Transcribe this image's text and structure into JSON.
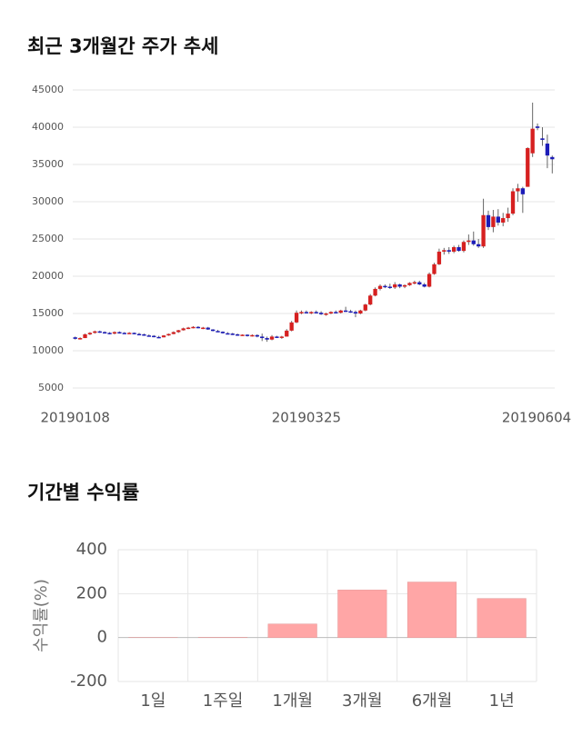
{
  "chart_data": [
    {
      "type": "candlestick",
      "title": "최근 3개월간 주가 추세",
      "up_color": "#d62020",
      "down_color": "#1c1cb8",
      "grid": true,
      "ylim": [
        5000,
        45000
      ],
      "yticks": [
        5000,
        10000,
        15000,
        20000,
        25000,
        30000,
        35000,
        40000,
        45000
      ],
      "categories": [
        "20190108",
        null,
        null,
        null,
        null,
        null,
        null,
        null,
        null,
        null,
        null,
        null,
        null,
        null,
        null,
        null,
        null,
        null,
        null,
        null,
        null,
        null,
        null,
        null,
        null,
        null,
        null,
        null,
        null,
        null,
        null,
        null,
        null,
        null,
        null,
        null,
        null,
        null,
        null,
        null,
        null,
        null,
        null,
        null,
        null,
        null,
        null,
        "20190325",
        null,
        null,
        null,
        null,
        null,
        null,
        null,
        null,
        null,
        null,
        null,
        null,
        null,
        null,
        null,
        null,
        null,
        null,
        null,
        null,
        null,
        null,
        null,
        null,
        null,
        null,
        null,
        null,
        null,
        null,
        null,
        null,
        null,
        null,
        null,
        null,
        null,
        null,
        null,
        null,
        null,
        null,
        null,
        null,
        null,
        null,
        null,
        null,
        null,
        "20190604"
      ],
      "values": [
        [
          11800,
          11900,
          11500,
          11600
        ],
        [
          11600,
          11800,
          11500,
          11700
        ],
        [
          11700,
          12300,
          11700,
          12200
        ],
        [
          12200,
          12500,
          12100,
          12400
        ],
        [
          12400,
          12700,
          12300,
          12600
        ],
        [
          12600,
          12700,
          12400,
          12500
        ],
        [
          12500,
          12600,
          12300,
          12400
        ],
        [
          12400,
          12500,
          12200,
          12300
        ],
        [
          12300,
          12600,
          12200,
          12500
        ],
        [
          12500,
          12600,
          12300,
          12400
        ],
        [
          12400,
          12500,
          12300,
          12350
        ],
        [
          12350,
          12500,
          12300,
          12400
        ],
        [
          12400,
          12450,
          12200,
          12250
        ],
        [
          12250,
          12400,
          12100,
          12200
        ],
        [
          12200,
          12300,
          12000,
          12050
        ],
        [
          12050,
          12200,
          11900,
          12000
        ],
        [
          12000,
          12100,
          11800,
          11850
        ],
        [
          11850,
          12000,
          11700,
          11800
        ],
        [
          11800,
          12100,
          11800,
          12050
        ],
        [
          12050,
          12300,
          12000,
          12250
        ],
        [
          12250,
          12600,
          12200,
          12500
        ],
        [
          12500,
          12800,
          12400,
          12750
        ],
        [
          12750,
          13100,
          12700,
          13000
        ],
        [
          13000,
          13200,
          12900,
          13100
        ],
        [
          13100,
          13300,
          13000,
          13200
        ],
        [
          13200,
          13300,
          13000,
          13050
        ],
        [
          13050,
          13200,
          12900,
          13100
        ],
        [
          13100,
          13200,
          12800,
          12850
        ],
        [
          12850,
          12900,
          12600,
          12650
        ],
        [
          12650,
          12800,
          12500,
          12550
        ],
        [
          12550,
          12600,
          12300,
          12350
        ],
        [
          12350,
          12500,
          12200,
          12300
        ],
        [
          12300,
          12400,
          12100,
          12200
        ],
        [
          12200,
          12300,
          12000,
          12100
        ],
        [
          12100,
          12200,
          12000,
          12150
        ],
        [
          12150,
          12200,
          11900,
          12000
        ],
        [
          12000,
          12200,
          11900,
          12100
        ],
        [
          12100,
          12200,
          11800,
          11900
        ],
        [
          11900,
          12300,
          11300,
          11700
        ],
        [
          11700,
          11900,
          11200,
          11500
        ],
        [
          11500,
          12100,
          11400,
          11900
        ],
        [
          11900,
          12000,
          11700,
          11800
        ],
        [
          11800,
          12000,
          11600,
          11900
        ],
        [
          11900,
          12900,
          11900,
          12700
        ],
        [
          12700,
          14000,
          12600,
          13800
        ],
        [
          13800,
          15400,
          13700,
          15100
        ],
        [
          15100,
          15400,
          14900,
          15200
        ],
        [
          15200,
          15400,
          15000,
          15100
        ],
        [
          15100,
          15300,
          14900,
          15200
        ],
        [
          15200,
          15400,
          15000,
          15100
        ],
        [
          15100,
          15300,
          14800,
          14900
        ],
        [
          14900,
          15100,
          14700,
          15000
        ],
        [
          15000,
          15300,
          14900,
          15200
        ],
        [
          15200,
          15400,
          15000,
          15100
        ],
        [
          15100,
          15500,
          15000,
          15400
        ],
        [
          15400,
          15900,
          15200,
          15300
        ],
        [
          15300,
          15500,
          15100,
          15200
        ],
        [
          15200,
          15400,
          14500,
          15000
        ],
        [
          15000,
          15500,
          14900,
          15400
        ],
        [
          15400,
          16300,
          15300,
          16200
        ],
        [
          16200,
          17600,
          16100,
          17400
        ],
        [
          17400,
          18500,
          17300,
          18300
        ],
        [
          18300,
          18900,
          18100,
          18700
        ],
        [
          18700,
          18900,
          18400,
          18600
        ],
        [
          18600,
          19000,
          18300,
          18500
        ],
        [
          18500,
          19200,
          18300,
          18900
        ],
        [
          18900,
          19000,
          18400,
          18600
        ],
        [
          18600,
          18900,
          18400,
          18800
        ],
        [
          18800,
          19200,
          18700,
          19100
        ],
        [
          19100,
          19400,
          18900,
          19200
        ],
        [
          19200,
          19400,
          18800,
          18900
        ],
        [
          18900,
          19100,
          18500,
          18600
        ],
        [
          18600,
          20500,
          18500,
          20300
        ],
        [
          20300,
          21800,
          20200,
          21600
        ],
        [
          21600,
          23700,
          21500,
          23300
        ],
        [
          23300,
          23800,
          22900,
          23500
        ],
        [
          23500,
          23900,
          23000,
          23300
        ],
        [
          23300,
          24100,
          23100,
          23900
        ],
        [
          23900,
          24200,
          23300,
          23400
        ],
        [
          23400,
          24800,
          23200,
          24600
        ],
        [
          24600,
          25600,
          24200,
          24800
        ],
        [
          24800,
          26000,
          24100,
          24300
        ],
        [
          24300,
          25000,
          23800,
          24000
        ],
        [
          24000,
          30400,
          23800,
          28200
        ],
        [
          28200,
          28800,
          26200,
          26600
        ],
        [
          26600,
          28900,
          25900,
          28000
        ],
        [
          28000,
          29000,
          26800,
          27200
        ],
        [
          27200,
          28500,
          26700,
          27800
        ],
        [
          27800,
          29200,
          27300,
          28400
        ],
        [
          28400,
          31800,
          28200,
          31400
        ],
        [
          31400,
          32400,
          30000,
          31800
        ],
        [
          31800,
          32000,
          28500,
          31000
        ],
        [
          32000,
          37300,
          32000,
          37200
        ],
        [
          36500,
          43300,
          36000,
          39800
        ],
        [
          40100,
          40500,
          39600,
          39900
        ],
        [
          38500,
          40000,
          37500,
          38300
        ],
        [
          37800,
          39000,
          34500,
          36200
        ],
        [
          36000,
          36200,
          33800,
          35700
        ]
      ]
    },
    {
      "type": "bar",
      "title": "기간별 수익률",
      "y_label": "수익률(%)",
      "color": "#ffa6a6",
      "grid": true,
      "ylim": [
        -200,
        400
      ],
      "yticks": [
        -200,
        0,
        200,
        400
      ],
      "categories": [
        "1일",
        "1주일",
        "1개월",
        "3개월",
        "6개월",
        "1년"
      ],
      "values": [
        0.5,
        1,
        62,
        217,
        253,
        178
      ]
    }
  ]
}
